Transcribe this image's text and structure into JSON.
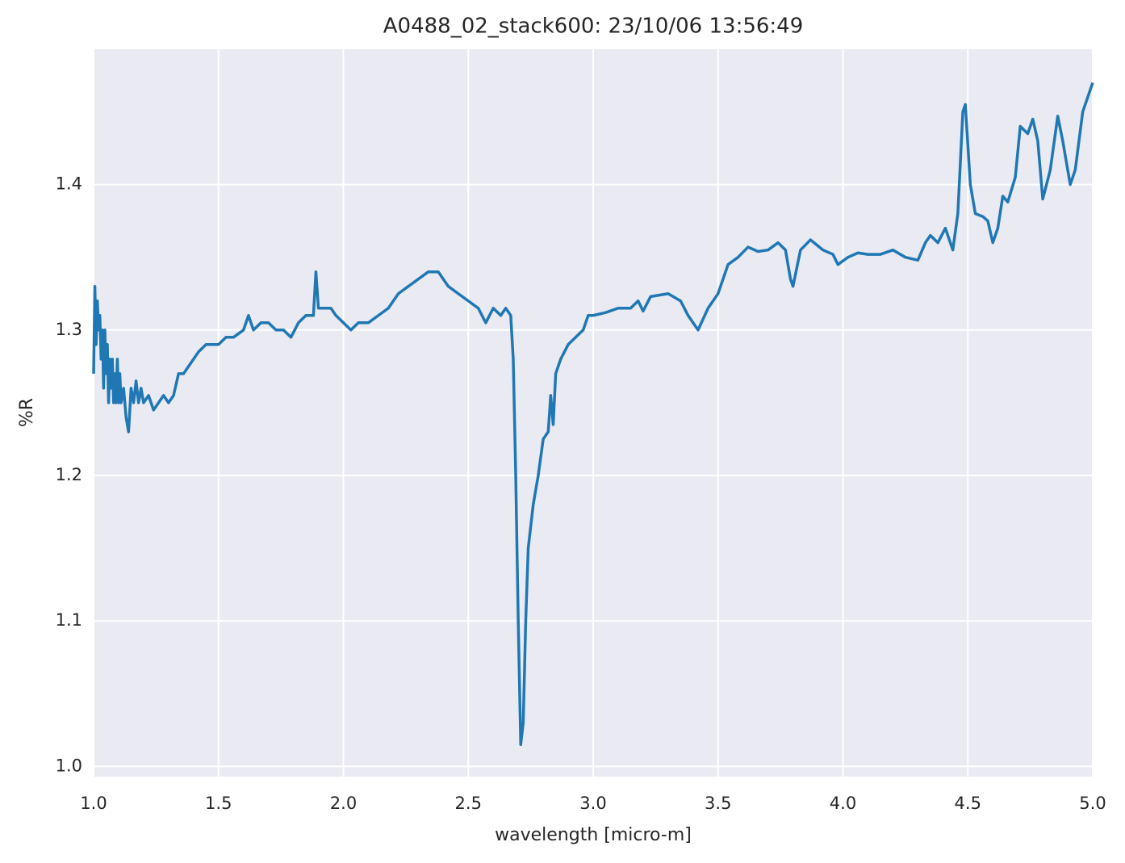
{
  "chart_data": {
    "type": "line",
    "title": "A0488_02_stack600:  23/10/06 13:56:49",
    "xlabel": "wavelength [micro-m]",
    "ylabel": "%R",
    "xlim": [
      1.0,
      5.0
    ],
    "ylim": [
      0.993,
      1.493
    ],
    "xticks": [
      {
        "value": 1,
        "label": "1.0"
      },
      1.5,
      {
        "value": 2,
        "label": "2.0"
      },
      2.5,
      {
        "value": 3,
        "label": "3.0"
      },
      3.5,
      {
        "value": 4,
        "label": "4.0"
      },
      4.5,
      {
        "value": 5,
        "label": "5.0"
      }
    ],
    "yticks": [
      {
        "value": 1,
        "label": "1.0"
      },
      1.1,
      1.2,
      1.3,
      1.4
    ],
    "grid": true,
    "series": [
      {
        "color": "#1f77b4",
        "x": [
          1.0,
          1.005,
          1.01,
          1.015,
          1.02,
          1.025,
          1.03,
          1.035,
          1.04,
          1.045,
          1.05,
          1.055,
          1.06,
          1.065,
          1.07,
          1.075,
          1.08,
          1.085,
          1.09,
          1.095,
          1.1,
          1.105,
          1.11,
          1.12,
          1.13,
          1.14,
          1.15,
          1.16,
          1.17,
          1.18,
          1.19,
          1.2,
          1.22,
          1.24,
          1.26,
          1.28,
          1.3,
          1.32,
          1.34,
          1.36,
          1.38,
          1.4,
          1.42,
          1.45,
          1.48,
          1.5,
          1.53,
          1.56,
          1.6,
          1.62,
          1.64,
          1.67,
          1.7,
          1.73,
          1.76,
          1.79,
          1.82,
          1.85,
          1.88,
          1.89,
          1.9,
          1.93,
          1.95,
          1.97,
          2.0,
          2.03,
          2.06,
          2.1,
          2.14,
          2.18,
          2.22,
          2.26,
          2.3,
          2.34,
          2.38,
          2.42,
          2.46,
          2.5,
          2.54,
          2.57,
          2.6,
          2.63,
          2.65,
          2.67,
          2.68,
          2.69,
          2.7,
          2.71,
          2.72,
          2.73,
          2.74,
          2.76,
          2.78,
          2.8,
          2.82,
          2.83,
          2.84,
          2.85,
          2.87,
          2.9,
          2.93,
          2.96,
          2.98,
          3.0,
          3.05,
          3.1,
          3.15,
          3.18,
          3.2,
          3.23,
          3.3,
          3.35,
          3.38,
          3.42,
          3.46,
          3.5,
          3.54,
          3.58,
          3.62,
          3.66,
          3.7,
          3.74,
          3.77,
          3.79,
          3.8,
          3.83,
          3.87,
          3.92,
          3.96,
          3.98,
          4.02,
          4.06,
          4.1,
          4.15,
          4.2,
          4.25,
          4.3,
          4.33,
          4.35,
          4.38,
          4.41,
          4.44,
          4.46,
          4.48,
          4.49,
          4.51,
          4.53,
          4.56,
          4.58,
          4.6,
          4.62,
          4.64,
          4.66,
          4.69,
          4.71,
          4.74,
          4.76,
          4.78,
          4.8,
          4.83,
          4.86,
          4.88,
          4.91,
          4.93,
          4.96,
          5.0
        ],
        "values": [
          1.27,
          1.33,
          1.29,
          1.32,
          1.3,
          1.31,
          1.28,
          1.3,
          1.26,
          1.3,
          1.27,
          1.29,
          1.25,
          1.28,
          1.26,
          1.28,
          1.25,
          1.27,
          1.25,
          1.28,
          1.25,
          1.27,
          1.25,
          1.26,
          1.24,
          1.23,
          1.26,
          1.25,
          1.265,
          1.25,
          1.26,
          1.25,
          1.255,
          1.245,
          1.25,
          1.255,
          1.25,
          1.255,
          1.27,
          1.27,
          1.275,
          1.28,
          1.285,
          1.29,
          1.29,
          1.29,
          1.295,
          1.295,
          1.3,
          1.31,
          1.3,
          1.305,
          1.305,
          1.3,
          1.3,
          1.295,
          1.305,
          1.31,
          1.31,
          1.34,
          1.315,
          1.315,
          1.315,
          1.31,
          1.305,
          1.3,
          1.305,
          1.305,
          1.31,
          1.315,
          1.325,
          1.33,
          1.335,
          1.34,
          1.34,
          1.33,
          1.325,
          1.32,
          1.315,
          1.305,
          1.315,
          1.31,
          1.315,
          1.31,
          1.28,
          1.2,
          1.1,
          1.015,
          1.03,
          1.1,
          1.15,
          1.18,
          1.2,
          1.225,
          1.23,
          1.255,
          1.235,
          1.27,
          1.28,
          1.29,
          1.295,
          1.3,
          1.31,
          1.31,
          1.312,
          1.315,
          1.315,
          1.32,
          1.313,
          1.323,
          1.325,
          1.32,
          1.31,
          1.3,
          1.315,
          1.325,
          1.345,
          1.35,
          1.357,
          1.354,
          1.355,
          1.36,
          1.355,
          1.335,
          1.33,
          1.355,
          1.362,
          1.355,
          1.352,
          1.345,
          1.35,
          1.353,
          1.352,
          1.352,
          1.355,
          1.35,
          1.348,
          1.36,
          1.365,
          1.36,
          1.37,
          1.355,
          1.38,
          1.45,
          1.455,
          1.4,
          1.38,
          1.378,
          1.375,
          1.36,
          1.37,
          1.392,
          1.388,
          1.405,
          1.44,
          1.435,
          1.445,
          1.43,
          1.39,
          1.41,
          1.447,
          1.43,
          1.4,
          1.41,
          1.45,
          1.47
        ]
      }
    ]
  }
}
